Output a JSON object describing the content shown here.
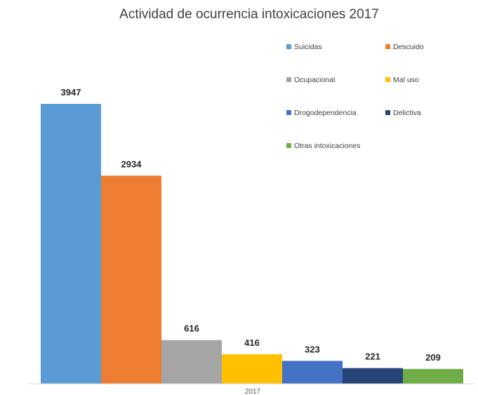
{
  "chart_data": {
    "type": "bar",
    "title": "Actividad de ocurrencia intoxicaciones 2017",
    "categories": [
      "2017"
    ],
    "series": [
      {
        "name": "Suicidas",
        "values": [
          3947
        ],
        "color": "#5b9bd5"
      },
      {
        "name": "Descuido",
        "values": [
          2934
        ],
        "color": "#ed7d31"
      },
      {
        "name": "Ocupacional",
        "values": [
          616
        ],
        "color": "#a5a5a5"
      },
      {
        "name": "Mal uso",
        "values": [
          416
        ],
        "color": "#ffc000"
      },
      {
        "name": "Drogodependencia",
        "values": [
          323
        ],
        "color": "#4472c4"
      },
      {
        "name": "Delictiva",
        "values": [
          221
        ],
        "color": "#264478"
      },
      {
        "name": "Otras intoxicaciones",
        "values": [
          209
        ],
        "color": "#70ad47"
      }
    ],
    "xlabel": "",
    "ylabel": "",
    "ylim": [
      0,
      4000
    ],
    "grid": false,
    "legend": "top-right",
    "data_labels": true
  }
}
